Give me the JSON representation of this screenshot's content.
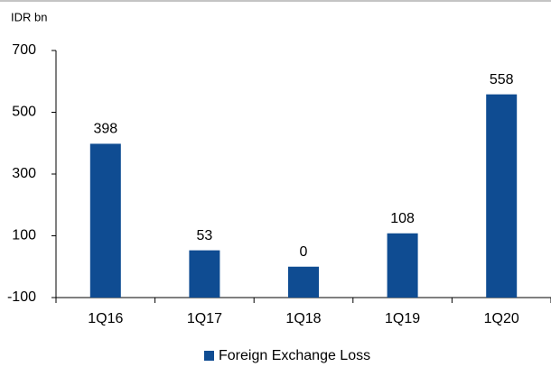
{
  "chart_data": {
    "type": "bar",
    "y_label": "IDR bn",
    "categories": [
      "1Q16",
      "1Q17",
      "1Q18",
      "1Q19",
      "1Q20"
    ],
    "series": [
      {
        "name": "Foreign Exchange Loss",
        "color": "#0f4c92",
        "values": [
          398,
          53,
          0,
          108,
          558
        ]
      }
    ],
    "ylim": [
      -100,
      700
    ],
    "yticks": [
      -100,
      100,
      300,
      500,
      700
    ],
    "grid": false,
    "legend": "bottom"
  }
}
